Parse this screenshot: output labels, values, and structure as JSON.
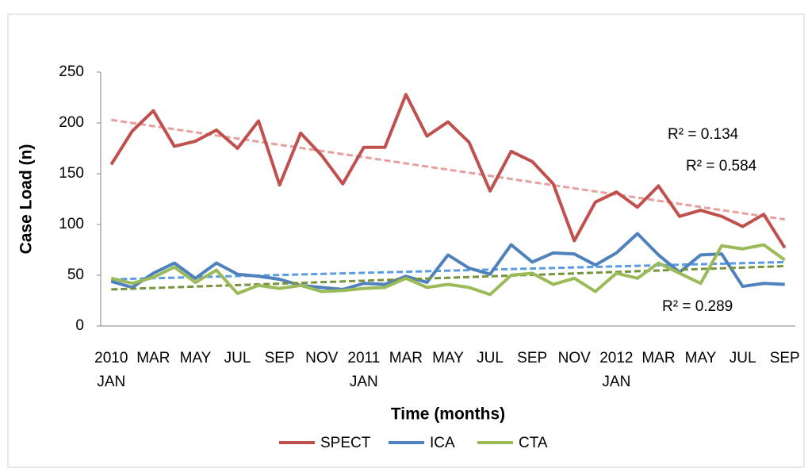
{
  "chart_data": {
    "type": "line",
    "x_label": "Time (months)",
    "y_label": "Case Load (n)",
    "categories": [
      "2010\nJAN",
      null,
      "MAR",
      null,
      "MAY",
      null,
      "JUL",
      null,
      "SEP",
      null,
      "NOV",
      null,
      "2011\nJAN",
      null,
      "MAR",
      null,
      "MAY",
      null,
      "JUL",
      null,
      "SEP",
      null,
      "NOV",
      null,
      "2012\nJAN",
      null,
      "MAR",
      null,
      "MAY",
      null,
      "JUL",
      null,
      "SEP"
    ],
    "series": [
      {
        "name": "SPECT",
        "color": "#c0504d",
        "trend_color": "#e6a09e",
        "values": [
          159,
          192,
          212,
          177,
          182,
          193,
          175,
          202,
          139,
          190,
          168,
          140,
          176,
          176,
          228,
          187,
          201,
          181,
          133,
          172,
          162,
          140,
          84,
          122,
          132,
          117,
          138,
          108,
          114,
          108,
          98,
          110,
          77
        ],
        "trend": [
          203,
          105
        ]
      },
      {
        "name": "ICA",
        "color": "#4f81bd",
        "trend_color": "#5b9be0",
        "values": [
          44,
          38,
          52,
          62,
          47,
          62,
          51,
          49,
          46,
          40,
          38,
          36,
          42,
          41,
          49,
          43,
          70,
          57,
          51,
          80,
          63,
          72,
          71,
          60,
          72,
          91,
          70,
          53,
          70,
          71,
          39,
          42,
          41
        ],
        "trend": [
          46,
          63
        ]
      },
      {
        "name": "CTA",
        "color": "#9bbb59",
        "trend_color": "#77933c",
        "values": [
          47,
          42,
          48,
          58,
          43,
          55,
          32,
          40,
          37,
          40,
          34,
          35,
          37,
          38,
          47,
          38,
          41,
          38,
          31,
          50,
          52,
          41,
          47,
          34,
          52,
          47,
          62,
          52,
          42,
          79,
          76,
          80,
          65
        ],
        "trend": [
          36,
          59
        ]
      }
    ],
    "annotations": [
      "R² = 0.134",
      "R² = 0.584",
      "R² = 0.289"
    ],
    "ylim": [
      0,
      250
    ],
    "yticks": [
      0,
      50,
      100,
      150,
      200,
      250
    ],
    "grid": false,
    "legend": "bottom"
  }
}
